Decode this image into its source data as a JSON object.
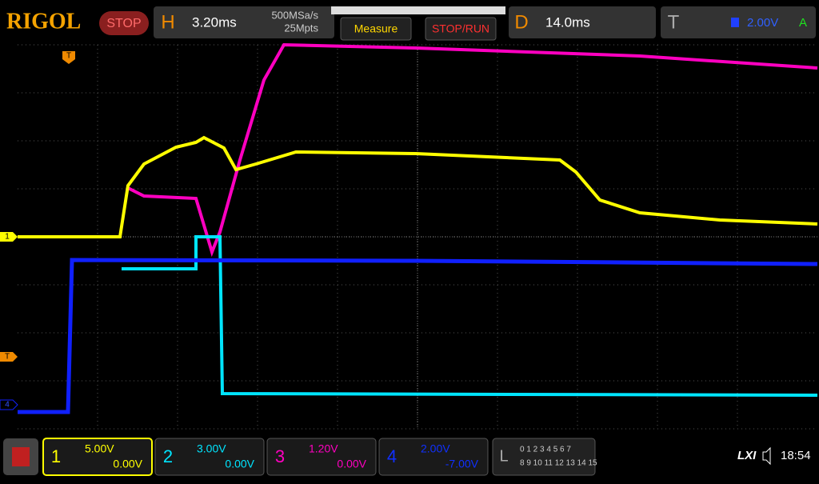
{
  "header": {
    "brand": "RIGOL",
    "status": "STOP",
    "horizontal": {
      "label": "H",
      "timebase": "3.20ms",
      "sample_rate": "500MSa/s",
      "memory_depth": "25Mpts"
    },
    "buttons": [
      "Measure",
      "STOP/RUN"
    ],
    "delay": {
      "label": "D",
      "value": "14.0ms"
    },
    "trigger": {
      "label": "T",
      "level": "2.00V",
      "mode": "A"
    }
  },
  "screen": {
    "markers": {
      "trigger_time": "T",
      "ch1": "1",
      "trigger_level": "T",
      "ch4": "4"
    }
  },
  "channels": [
    {
      "number": "1",
      "scale": "5.00V",
      "offset": "0.00V"
    },
    {
      "number": "2",
      "scale": "3.00V",
      "offset": "0.00V"
    },
    {
      "number": "3",
      "scale": "1.20V",
      "offset": "0.00V"
    },
    {
      "number": "4",
      "scale": "2.00V",
      "offset": "-7.00V"
    }
  ],
  "logic": {
    "label": "L",
    "row1": "0 1 2 3 4 5 6 7",
    "row2": "8 9 10 11 12 13 14 15"
  },
  "footer": {
    "lxi": "LXI",
    "time": "18:54"
  }
}
